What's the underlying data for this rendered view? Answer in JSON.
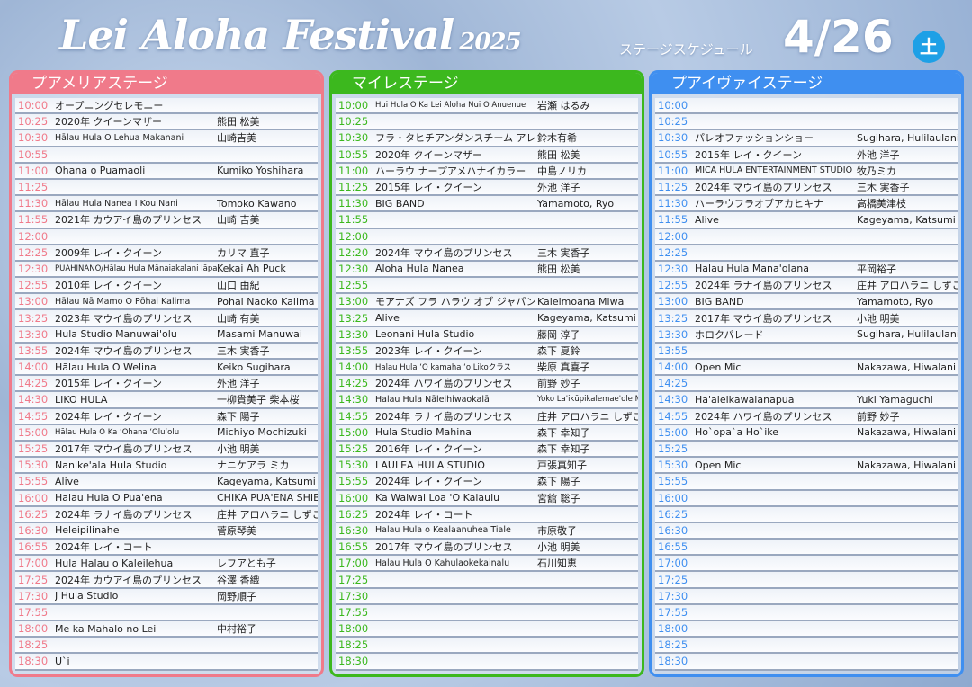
{
  "header": {
    "title": "Lei Aloha Festival",
    "year": "2025",
    "subtitle": "ステージスケジュール",
    "date": "4/26",
    "weekday": "土"
  },
  "colors": {
    "pink": "#f07a8a",
    "green": "#3cb81e",
    "blue": "#3f8ff0"
  },
  "stages": [
    {
      "name": "プアメリアステージ",
      "color": "#f07a8a",
      "rows": [
        [
          "10:00",
          "オープニングセレモニー",
          ""
        ],
        [
          "10:25",
          "2020年 クイーンマザー",
          "熊田 松美"
        ],
        [
          "10:30",
          "Hālau Hula O Lehua Makanani",
          "山崎吉美"
        ],
        [
          "10:55",
          "",
          ""
        ],
        [
          "11:00",
          "Ohana o Puamaoli",
          "Kumiko Yoshihara"
        ],
        [
          "11:25",
          "",
          ""
        ],
        [
          "11:30",
          "Hālau Hula Nanea I Kou Nani",
          "Tomoko Kawano"
        ],
        [
          "11:55",
          "2021年 カウアイ島のプリンセス",
          "山崎 吉美"
        ],
        [
          "12:00",
          "",
          ""
        ],
        [
          "12:25",
          "2009年 レイ・クイーン",
          "カリマ 直子"
        ],
        [
          "12:30",
          "PUAHINANO/Hālau Hula Mānaiakalani Iāpana",
          "Kekai Ah Puck"
        ],
        [
          "12:55",
          "2010年 レイ・クイーン",
          "山口 由紀"
        ],
        [
          "13:00",
          "Hālau Nā Mamo O Pōhai Kalima",
          "Pohai Naoko Kalima"
        ],
        [
          "13:25",
          "2023年 マウイ島のプリンセス",
          "山崎 有美"
        ],
        [
          "13:30",
          "Hula Studio Manuwai'olu",
          "Masami Manuwai"
        ],
        [
          "13:55",
          "2024年 マウイ島のプリンセス",
          "三木 実香子"
        ],
        [
          "14:00",
          "Hālau Hula O Welina",
          "Keiko Sugihara"
        ],
        [
          "14:25",
          "2015年 レイ・クイーン",
          "外池 洋子"
        ],
        [
          "14:30",
          "LIKO HULA",
          "一柳貴美子 柴本桜"
        ],
        [
          "14:55",
          "2024年 レイ・クイーン",
          "森下 陽子"
        ],
        [
          "15:00",
          "Hālau Hula O Ka ʻOhana ʻOluʻolu",
          "Michiyo Mochizuki"
        ],
        [
          "15:25",
          "2017年 マウイ島のプリンセス",
          "小池 明美"
        ],
        [
          "15:30",
          "Nanike'ala Hula Studio",
          "ナニケアラ ミカ"
        ],
        [
          "15:55",
          "Alive",
          "Kageyama, Katsumi"
        ],
        [
          "16:00",
          "Halau Hula O Pua'ena",
          "CHIKA PUA'ENA SHIBATA"
        ],
        [
          "16:25",
          "2024年 ラナイ島のプリンセス",
          "庄井 アロハラニ しずこ"
        ],
        [
          "16:30",
          "Heleipilinahe",
          "菅原琴美"
        ],
        [
          "16:55",
          "2024年 レイ・コート",
          ""
        ],
        [
          "17:00",
          "Hula Halau o Kaleilehua",
          "レフアとも子"
        ],
        [
          "17:25",
          "2024年 カウアイ島のプリンセス",
          "谷澤 香織"
        ],
        [
          "17:30",
          "J Hula Studio",
          "岡野順子"
        ],
        [
          "17:55",
          "",
          ""
        ],
        [
          "18:00",
          "Me ka Mahalo no Lei",
          "中村裕子"
        ],
        [
          "18:25",
          "",
          ""
        ],
        [
          "18:30",
          "U`i",
          ""
        ]
      ]
    },
    {
      "name": "マイレステージ",
      "color": "#3cb81e",
      "rows": [
        [
          "10:00",
          "Hui Hula O Ka Lei Aloha Nui O Anuenue",
          "岩瀬 はるみ"
        ],
        [
          "10:25",
          "",
          ""
        ],
        [
          "10:30",
          "フラ・タヒチアンダンスチーム アレイティ",
          "鈴木有希"
        ],
        [
          "10:55",
          "2020年 クイーンマザー",
          "熊田 松美"
        ],
        [
          "11:00",
          "ハーラウ ナープアメハナイカラー",
          "中島ノリカ"
        ],
        [
          "11:25",
          "2015年 レイ・クイーン",
          "外池 洋子"
        ],
        [
          "11:30",
          "BIG BAND",
          "Yamamoto, Ryo"
        ],
        [
          "11:55",
          "",
          ""
        ],
        [
          "12:00",
          "",
          ""
        ],
        [
          "12:20",
          "2024年 マウイ島のプリンセス",
          "三木 実香子"
        ],
        [
          "12:30",
          "Aloha Hula Nanea",
          "熊田 松美"
        ],
        [
          "12:55",
          "",
          ""
        ],
        [
          "13:00",
          "モアナズ フラ ハラウ オブ ジャパン",
          "Kaleimoana Miwa"
        ],
        [
          "13:25",
          "Alive",
          "Kageyama, Katsumi"
        ],
        [
          "13:30",
          "Leonani Hula Studio",
          "藤岡 淳子"
        ],
        [
          "13:55",
          "2023年 レイ・クイーン",
          "森下 夏鈴"
        ],
        [
          "14:00",
          "Halau Hula ʻO kamaha ʻo Likoクラス",
          "柴原 真喜子"
        ],
        [
          "14:25",
          "2024年 ハワイ島のプリンセス",
          "前野 妙子"
        ],
        [
          "14:30",
          "Halau Hula Nāleihiwaokalā",
          "Yoko La'ikūpikalemae'ole Morishita"
        ],
        [
          "14:55",
          "2024年 ラナイ島のプリンセス",
          "庄井 アロハラニ しずこ"
        ],
        [
          "15:00",
          "Hula Studio Mahina",
          "森下 幸知子"
        ],
        [
          "15:25",
          "2016年 レイ・クイーン",
          "森下 幸知子"
        ],
        [
          "15:30",
          "LAULEA HULA STUDIO",
          "戸張真知子"
        ],
        [
          "15:55",
          "2024年 レイ・クイーン",
          "森下 陽子"
        ],
        [
          "16:00",
          "Ka Waiwai Loa 'O Kaiaulu",
          "宮舘 聡子"
        ],
        [
          "16:25",
          "2024年 レイ・コート",
          ""
        ],
        [
          "16:30",
          "Halau Hula o Kealaanuhea Tiale",
          "市原敬子"
        ],
        [
          "16:55",
          "2017年 マウイ島のプリンセス",
          "小池 明美"
        ],
        [
          "17:00",
          "Halau Hula O Kahulaokekainalu",
          "石川知恵"
        ],
        [
          "17:25",
          "",
          ""
        ],
        [
          "17:30",
          "",
          ""
        ],
        [
          "17:55",
          "",
          ""
        ],
        [
          "18:00",
          "",
          ""
        ],
        [
          "18:25",
          "",
          ""
        ],
        [
          "18:30",
          "",
          ""
        ]
      ]
    },
    {
      "name": "プアイヴァイステージ",
      "color": "#3f8ff0",
      "rows": [
        [
          "10:00",
          "",
          ""
        ],
        [
          "10:25",
          "",
          ""
        ],
        [
          "10:30",
          "パレオファッションショー",
          "Sugihara, Hulilaulani"
        ],
        [
          "10:55",
          "2015年 レイ・クイーン",
          "外池 洋子"
        ],
        [
          "11:00",
          "MICA HULA ENTERTAINMENT STUDIO",
          "牧乃ミカ"
        ],
        [
          "11:25",
          "2024年 マウイ島のプリンセス",
          "三木 実香子"
        ],
        [
          "11:30",
          "ハーラウフラオブアカヒキナ",
          "高橋美津枝"
        ],
        [
          "11:55",
          "Alive",
          "Kageyama, Katsumi"
        ],
        [
          "12:00",
          "",
          ""
        ],
        [
          "12:25",
          "",
          ""
        ],
        [
          "12:30",
          "Halau Hula Mana'olana",
          "平岡裕子"
        ],
        [
          "12:55",
          "2024年 ラナイ島のプリンセス",
          "庄井 アロハラニ しずこ"
        ],
        [
          "13:00",
          "BIG BAND",
          "Yamamoto, Ryo"
        ],
        [
          "13:25",
          "2017年 マウイ島のプリンセス",
          "小池 明美"
        ],
        [
          "13:30",
          "ホロクパレード",
          "Sugihara, Hulilaulani"
        ],
        [
          "13:55",
          "",
          ""
        ],
        [
          "14:00",
          "Open Mic",
          "Nakazawa, Hiwalani"
        ],
        [
          "14:25",
          "",
          ""
        ],
        [
          "14:30",
          "Ha'aleikawaianapua",
          "Yuki Yamaguchi"
        ],
        [
          "14:55",
          "2024年 ハワイ島のプリンセス",
          "前野 妙子"
        ],
        [
          "15:00",
          "Ho`opa`a Ho`ike",
          "Nakazawa, Hiwalani"
        ],
        [
          "15:25",
          "",
          ""
        ],
        [
          "15:30",
          "Open Mic",
          "Nakazawa, Hiwalani"
        ],
        [
          "15:55",
          "",
          ""
        ],
        [
          "16:00",
          "",
          ""
        ],
        [
          "16:25",
          "",
          ""
        ],
        [
          "16:30",
          "",
          ""
        ],
        [
          "16:55",
          "",
          ""
        ],
        [
          "17:00",
          "",
          ""
        ],
        [
          "17:25",
          "",
          ""
        ],
        [
          "17:30",
          "",
          ""
        ],
        [
          "17:55",
          "",
          ""
        ],
        [
          "18:00",
          "",
          ""
        ],
        [
          "18:25",
          "",
          ""
        ],
        [
          "18:30",
          "",
          ""
        ]
      ]
    }
  ]
}
